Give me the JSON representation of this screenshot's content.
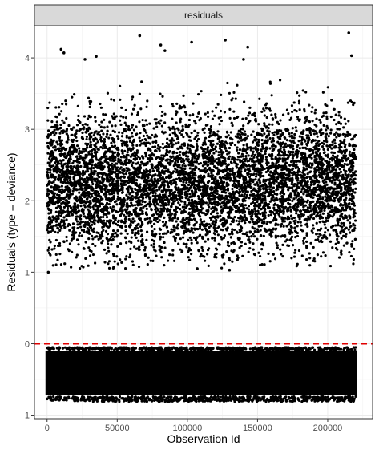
{
  "chart_data": {
    "type": "scatter",
    "title": "",
    "facet_label": "residuals",
    "xlabel": "Observation Id",
    "ylabel": "Residuals (type = deviance)",
    "xlim": [
      -9000,
      232000
    ],
    "ylim": [
      -1.05,
      4.45
    ],
    "x_ticks": [
      0,
      50000,
      100000,
      150000,
      200000
    ],
    "x_tick_labels": [
      "0",
      "50000",
      "100000",
      "150000",
      "200000"
    ],
    "y_ticks": [
      -1,
      0,
      1,
      2,
      3,
      4
    ],
    "y_tick_labels": [
      "-1",
      "0",
      "1",
      "2",
      "3",
      "4"
    ],
    "grid": true,
    "x_range_observed": [
      0,
      220000
    ],
    "reference_line": {
      "y": 0,
      "color": "#e00000",
      "style": "dashed"
    },
    "series": [
      {
        "group": "upper_cluster",
        "color": "#000000",
        "dense_band": {
          "y_min": 1.3,
          "y_max": 3.2
        },
        "outliers": [
          {
            "x": 900,
            "y": 1.0
          },
          {
            "x": 10000,
            "y": 4.12
          },
          {
            "x": 12000,
            "y": 4.07
          },
          {
            "x": 27000,
            "y": 3.98
          },
          {
            "x": 35000,
            "y": 4.02
          },
          {
            "x": 66000,
            "y": 4.31
          },
          {
            "x": 81000,
            "y": 4.18
          },
          {
            "x": 84000,
            "y": 4.1
          },
          {
            "x": 103000,
            "y": 4.22
          },
          {
            "x": 127000,
            "y": 4.25
          },
          {
            "x": 140000,
            "y": 3.98
          },
          {
            "x": 143000,
            "y": 4.15
          },
          {
            "x": 215000,
            "y": 4.35
          },
          {
            "x": 217000,
            "y": 4.03
          },
          {
            "x": 107000,
            "y": 1.05
          },
          {
            "x": 130000,
            "y": 1.03
          }
        ]
      },
      {
        "group": "lower_cluster",
        "color": "#000000",
        "dense_band": {
          "y_min": -0.72,
          "y_max": -0.1
        }
      }
    ]
  }
}
